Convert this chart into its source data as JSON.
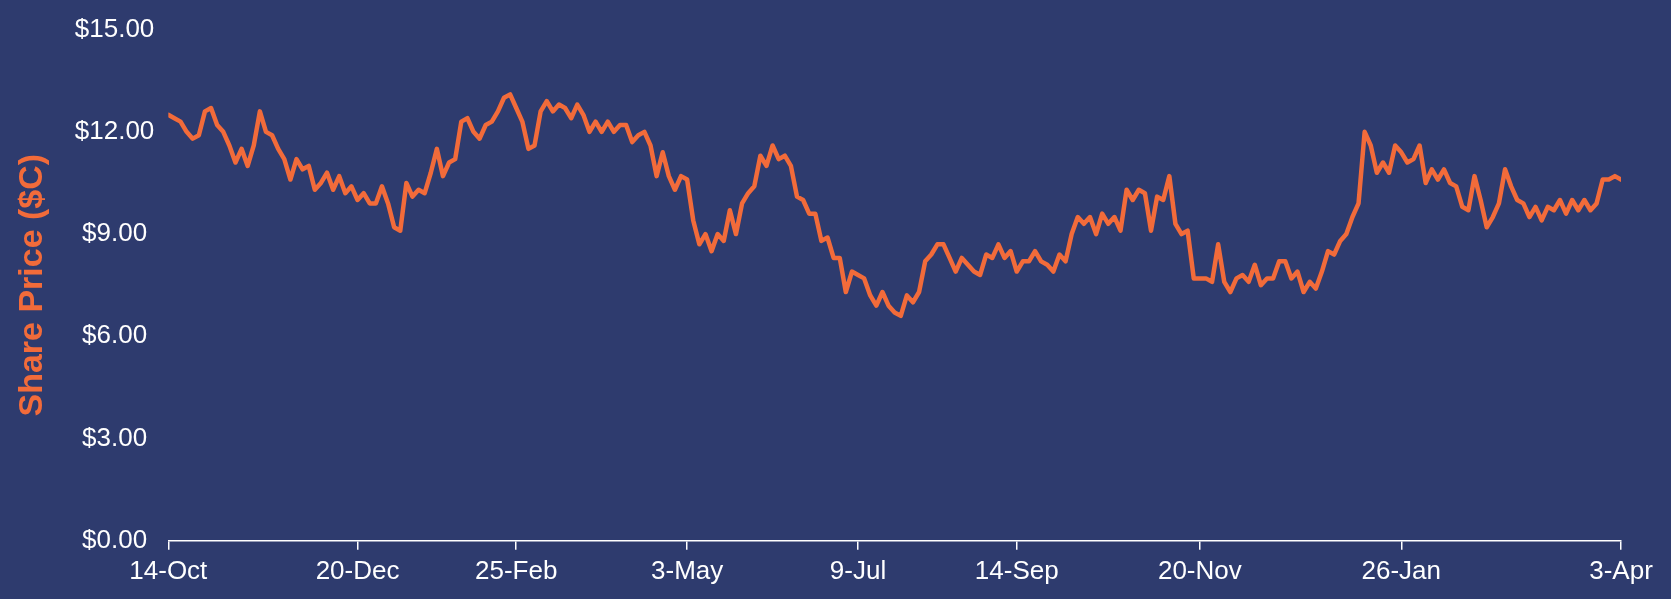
{
  "chart_data": {
    "type": "line",
    "ylabel": "Share Price ($C)",
    "ylim": [
      0,
      15
    ],
    "categories": [
      "14-Oct",
      null,
      null,
      null,
      null,
      null,
      null,
      null,
      null,
      null,
      null,
      null,
      null,
      null,
      null,
      null,
      null,
      null,
      null,
      null,
      null,
      null,
      null,
      null,
      null,
      null,
      null,
      null,
      null,
      null,
      null,
      "20-Dec",
      null,
      null,
      null,
      null,
      null,
      null,
      null,
      null,
      null,
      null,
      null,
      null,
      null,
      null,
      null,
      null,
      null,
      null,
      null,
      null,
      null,
      null,
      null,
      null,
      null,
      "25-Feb",
      null,
      null,
      null,
      null,
      null,
      null,
      null,
      null,
      null,
      null,
      null,
      null,
      null,
      null,
      null,
      null,
      null,
      null,
      null,
      null,
      null,
      null,
      null,
      null,
      null,
      null,
      null,
      "3-May",
      null,
      null,
      null,
      null,
      null,
      null,
      null,
      null,
      null,
      null,
      null,
      null,
      null,
      null,
      null,
      null,
      null,
      null,
      null,
      null,
      null,
      null,
      null,
      null,
      null,
      null,
      null,
      "9-Jul",
      null,
      null,
      null,
      null,
      null,
      null,
      null,
      null,
      null,
      null,
      null,
      null,
      null,
      null,
      null,
      null,
      null,
      null,
      null,
      null,
      null,
      null,
      null,
      null,
      null,
      "14-Sep",
      null,
      null,
      null,
      null,
      null,
      null,
      null,
      null,
      null,
      null,
      null,
      null,
      null,
      null,
      null,
      null,
      null,
      null,
      null,
      null,
      null,
      null,
      null,
      null,
      null,
      null,
      null,
      null,
      null,
      "20-Nov",
      null,
      null,
      null,
      null,
      null,
      null,
      null,
      null,
      null,
      null,
      null,
      null,
      null,
      null,
      null,
      null,
      null,
      null,
      null,
      null,
      null,
      null,
      null,
      null,
      null,
      null,
      null,
      null,
      null,
      null,
      null,
      null,
      "26-Jan",
      null,
      null,
      null,
      null,
      null,
      null,
      null,
      null,
      null,
      null,
      null,
      null,
      null,
      null,
      null,
      null,
      null,
      null,
      null,
      null,
      null,
      null,
      null,
      null,
      null,
      null,
      null,
      null,
      null,
      null,
      null,
      null,
      null,
      null,
      null,
      "3-Apr"
    ],
    "yticks": [
      {
        "value": 0,
        "label": "$0.00"
      },
      {
        "value": 3,
        "label": "$3.00"
      },
      {
        "value": 6,
        "label": "$6.00"
      },
      {
        "value": 9,
        "label": "$9.00"
      },
      {
        "value": 12,
        "label": "$12.00"
      },
      {
        "value": 15,
        "label": "$15.00"
      }
    ],
    "marker": "none",
    "line_style": "solid",
    "series": [
      {
        "color": "#f26b3a",
        "values": [
          12.5,
          12.4,
          12.3,
          12.0,
          11.8,
          11.9,
          12.6,
          12.7,
          12.2,
          12.0,
          11.6,
          11.1,
          11.5,
          11.0,
          11.6,
          12.6,
          12.0,
          11.9,
          11.5,
          11.2,
          10.6,
          11.2,
          10.9,
          11.0,
          10.3,
          10.5,
          10.8,
          10.3,
          10.7,
          10.2,
          10.4,
          10.0,
          10.2,
          9.9,
          9.9,
          10.4,
          9.9,
          9.2,
          9.1,
          10.5,
          10.1,
          10.3,
          10.2,
          10.8,
          11.5,
          10.7,
          11.1,
          11.2,
          12.3,
          12.4,
          12.0,
          11.8,
          12.2,
          12.3,
          12.6,
          13.0,
          13.1,
          12.7,
          12.3,
          11.5,
          11.6,
          12.6,
          12.9,
          12.6,
          12.8,
          12.7,
          12.4,
          12.8,
          12.5,
          12.0,
          12.3,
          12.0,
          12.3,
          12.0,
          12.2,
          12.2,
          11.7,
          11.9,
          12.0,
          11.6,
          10.7,
          11.4,
          10.7,
          10.3,
          10.7,
          10.6,
          9.4,
          8.7,
          9.0,
          8.5,
          9.0,
          8.8,
          9.7,
          9.0,
          9.9,
          10.2,
          10.4,
          11.3,
          11.0,
          11.6,
          11.2,
          11.3,
          11.0,
          10.1,
          10.0,
          9.6,
          9.6,
          8.8,
          8.9,
          8.3,
          8.3,
          7.3,
          7.9,
          7.8,
          7.7,
          7.2,
          6.9,
          7.3,
          6.9,
          6.7,
          6.6,
          7.2,
          7.0,
          7.3,
          8.2,
          8.4,
          8.7,
          8.7,
          8.3,
          7.9,
          8.3,
          8.1,
          7.9,
          7.8,
          8.4,
          8.3,
          8.7,
          8.3,
          8.5,
          7.9,
          8.2,
          8.2,
          8.5,
          8.2,
          8.1,
          7.9,
          8.4,
          8.2,
          9.0,
          9.5,
          9.3,
          9.5,
          9.0,
          9.6,
          9.3,
          9.5,
          9.1,
          10.3,
          10.0,
          10.3,
          10.2,
          9.1,
          10.1,
          10.0,
          10.7,
          9.3,
          9.0,
          9.1,
          7.7,
          7.7,
          7.7,
          7.6,
          8.7,
          7.6,
          7.3,
          7.7,
          7.8,
          7.6,
          8.1,
          7.5,
          7.7,
          7.7,
          8.2,
          8.2,
          7.7,
          7.9,
          7.3,
          7.6,
          7.4,
          7.9,
          8.5,
          8.4,
          8.8,
          9.0,
          9.5,
          9.9,
          12.0,
          11.6,
          10.8,
          11.1,
          10.8,
          11.6,
          11.4,
          11.1,
          11.2,
          11.6,
          10.5,
          10.9,
          10.6,
          10.9,
          10.5,
          10.4,
          9.8,
          9.7,
          10.7,
          10.0,
          9.2,
          9.5,
          9.9,
          10.9,
          10.4,
          10.0,
          9.9,
          9.5,
          9.8,
          9.4,
          9.8,
          9.7,
          10.0,
          9.6,
          10.0,
          9.7,
          10.0,
          9.7,
          9.9,
          10.6,
          10.6,
          10.7,
          10.6
        ]
      }
    ]
  }
}
